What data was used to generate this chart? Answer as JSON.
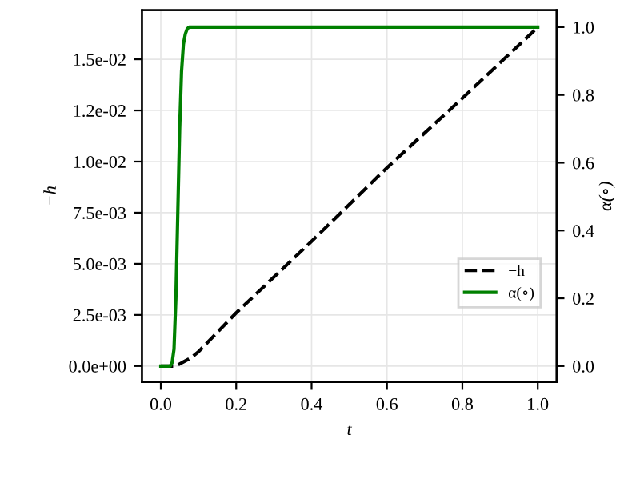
{
  "chart_data": {
    "type": "line",
    "xlabel": "t",
    "ylabel": "−h",
    "y2label": "α(∘)",
    "series": [
      {
        "name": "−h",
        "color": "#000000",
        "line_style": "dashed",
        "x": [
          0.0,
          0.04,
          0.06,
          0.08,
          0.1,
          0.2,
          0.4,
          0.6,
          0.8,
          1.0
        ],
        "values": [
          0.0,
          0.0,
          0.0002,
          0.0004,
          0.0007,
          0.0026,
          0.0061,
          0.0097,
          0.0131,
          0.01656
        ]
      },
      {
        "name": "α(∘)",
        "color": "#008000",
        "line_style": "solid",
        "axis": "y2",
        "x": [
          0.0,
          0.025,
          0.03,
          0.035,
          0.04,
          0.045,
          0.05,
          0.055,
          0.06,
          0.065,
          0.07,
          0.075,
          1.0
        ],
        "values": [
          0.0,
          0.0,
          0.01,
          0.05,
          0.2,
          0.45,
          0.7,
          0.87,
          0.95,
          0.98,
          0.995,
          1.0,
          1.0
        ]
      }
    ],
    "xlim": [
      -0.05,
      1.05
    ],
    "xticks": [
      {
        "value": 0,
        "label": "0.0"
      },
      {
        "value": 0.2,
        "label": "0.2"
      },
      {
        "value": 0.4,
        "label": "0.4"
      },
      {
        "value": 0.6,
        "label": "0.6"
      },
      {
        "value": 0.8,
        "label": "0.8"
      },
      {
        "value": 1,
        "label": "1.0"
      }
    ],
    "ylim": [
      -0.00078,
      0.0174
    ],
    "yticks": [
      {
        "value": 0,
        "label": "0.0e+00"
      },
      {
        "value": 0.0025,
        "label": "2.5e-03"
      },
      {
        "value": 0.005,
        "label": "5.0e-03"
      },
      {
        "value": 0.0075,
        "label": "7.5e-03"
      },
      {
        "value": 0.01,
        "label": "1.0e-02"
      },
      {
        "value": 0.0125,
        "label": "1.2e-02"
      },
      {
        "value": 0.015,
        "label": "1.5e-02"
      }
    ],
    "y2lim": [
      -0.047,
      1.05
    ],
    "y2ticks": [
      {
        "value": 0,
        "label": "0.0"
      },
      {
        "value": 0.2,
        "label": "0.2"
      },
      {
        "value": 0.4,
        "label": "0.4"
      },
      {
        "value": 0.6,
        "label": "0.6"
      },
      {
        "value": 0.8,
        "label": "0.8"
      },
      {
        "value": 1,
        "label": "1.0"
      }
    ],
    "grid": true,
    "legend": "lower right"
  }
}
